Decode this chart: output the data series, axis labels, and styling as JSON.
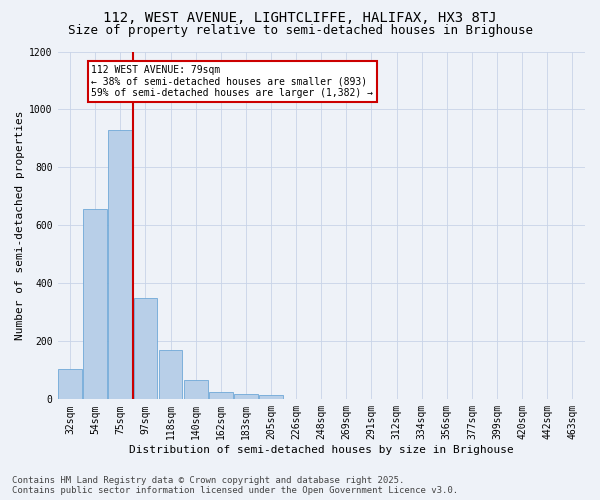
{
  "title": "112, WEST AVENUE, LIGHTCLIFFE, HALIFAX, HX3 8TJ",
  "subtitle": "Size of property relative to semi-detached houses in Brighouse",
  "xlabel": "Distribution of semi-detached houses by size in Brighouse",
  "ylabel": "Number of semi-detached properties",
  "categories": [
    "32sqm",
    "54sqm",
    "75sqm",
    "97sqm",
    "118sqm",
    "140sqm",
    "162sqm",
    "183sqm",
    "205sqm",
    "226sqm",
    "248sqm",
    "269sqm",
    "291sqm",
    "312sqm",
    "334sqm",
    "356sqm",
    "377sqm",
    "399sqm",
    "420sqm",
    "442sqm",
    "463sqm"
  ],
  "bar_heights": [
    105,
    658,
    930,
    350,
    170,
    68,
    27,
    18,
    15,
    0,
    0,
    0,
    0,
    0,
    0,
    0,
    0,
    0,
    0,
    0,
    0
  ],
  "bar_color": "#b8cfe8",
  "bar_edge_color": "#6fa8d8",
  "annotation_text": "112 WEST AVENUE: 79sqm\n← 38% of semi-detached houses are smaller (893)\n59% of semi-detached houses are larger (1,382) →",
  "annotation_box_color": "#ffffff",
  "annotation_box_edge": "#cc0000",
  "line_color": "#cc0000",
  "footer_line1": "Contains HM Land Registry data © Crown copyright and database right 2025.",
  "footer_line2": "Contains public sector information licensed under the Open Government Licence v3.0.",
  "background_color": "#eef2f8",
  "ylim": [
    0,
    1200
  ],
  "yticks": [
    0,
    200,
    400,
    600,
    800,
    1000,
    1200
  ],
  "title_fontsize": 10,
  "subtitle_fontsize": 9,
  "axis_fontsize": 8,
  "tick_fontsize": 7,
  "footer_fontsize": 6.5,
  "property_line_xindex": 2
}
